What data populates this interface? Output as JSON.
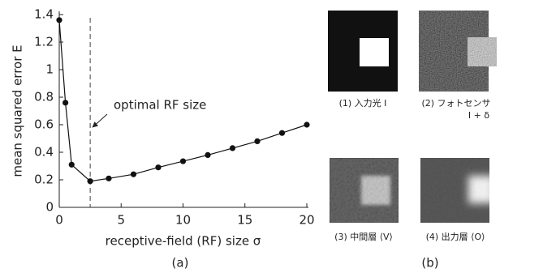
{
  "chart_data": {
    "type": "line",
    "x_label": "receptive-field (RF) size σ",
    "y_label": "mean squared error E",
    "annotation": "optimal RF size",
    "x": [
      0,
      0.5,
      1,
      2.5,
      4,
      6,
      8,
      10,
      12,
      14,
      16,
      18,
      20
    ],
    "series": [
      {
        "name": null,
        "color": "#111111",
        "values": [
          1.36,
          0.76,
          0.31,
          0.19,
          0.21,
          0.24,
          0.29,
          0.335,
          0.38,
          0.43,
          0.48,
          0.54,
          0.6
        ]
      }
    ],
    "xlim": [
      0,
      20
    ],
    "xticks": [
      0,
      5,
      10,
      15,
      20
    ],
    "ylim": [
      0,
      1.4
    ],
    "yticks": [
      0,
      0.2,
      0.4,
      0.6,
      0.8,
      1,
      1.2,
      1.4
    ],
    "grid": false
  },
  "panels": {
    "labels": [
      "(a)",
      "(b)"
    ],
    "images": [
      {
        "caption": "(1) 入力光 I"
      },
      {
        "caption": "(2) フォトセンサ",
        "caption2": "I + δ"
      },
      {
        "caption": "(3) 中間層 ⟨V⟩"
      },
      {
        "caption": "(4) 出力層 ⟨O⟩"
      }
    ]
  }
}
